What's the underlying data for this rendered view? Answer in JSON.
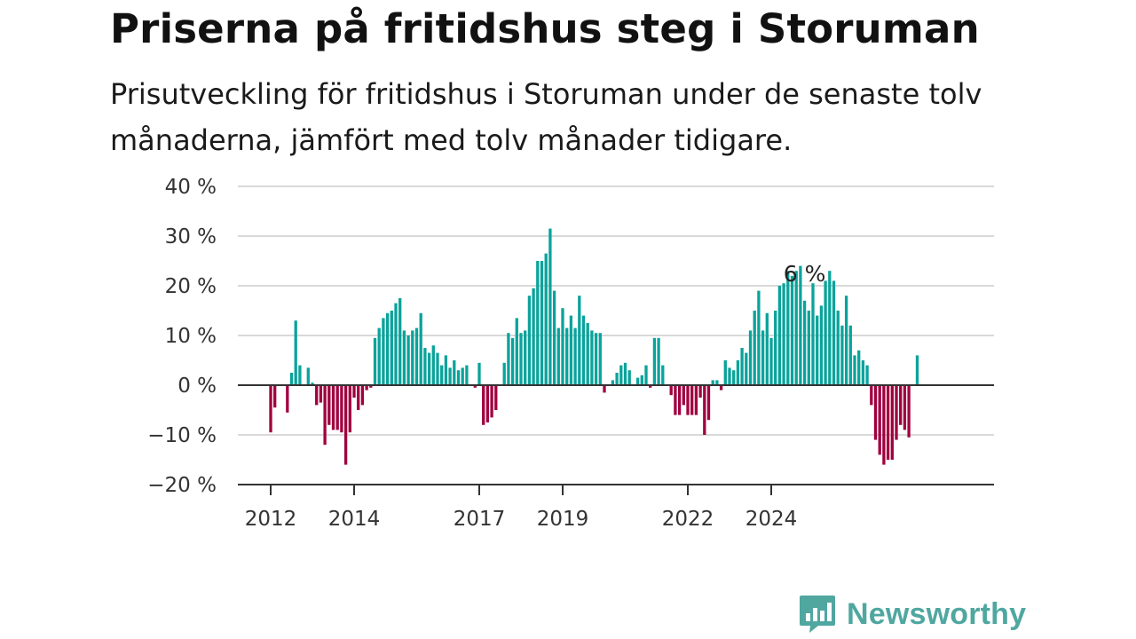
{
  "header": {
    "title": "Priserna på fritidshus steg i Storuman",
    "subtitle": "Prisutveckling för fritidshus i Storuman under de senaste tolv månaderna, jämfört med tolv månader tidigare."
  },
  "brand": {
    "name": "Newsworthy",
    "icon": "newsworthy-logo-icon",
    "color": "#4fa7a0"
  },
  "colors": {
    "positive": "#0aa39b",
    "negative": "#a0003f",
    "zero_line": "#333333",
    "grid": "#d9d9d9"
  },
  "chart_data": {
    "type": "bar",
    "y_unit": "%",
    "ylim": [
      -20,
      40
    ],
    "yticks": [
      40,
      30,
      20,
      10,
      0,
      -10,
      -20
    ],
    "ytick_labels": [
      "40 %",
      "30 %",
      "20 %",
      "10 %",
      "0 %",
      "−10 %",
      "−20 %"
    ],
    "xtick_labels": [
      "2012",
      "2014",
      "2017",
      "2019",
      "2022",
      "2024"
    ],
    "xtick_index": [
      0,
      20,
      50,
      70,
      100,
      120
    ],
    "grid": true,
    "annotation": {
      "text": "6 %",
      "index": 128
    },
    "values": [
      -9.5,
      -4.5,
      0,
      0,
      -5.5,
      2.5,
      13,
      4,
      0,
      3.5,
      0.5,
      -4,
      -3.5,
      -12,
      -8,
      -9,
      -9,
      -9.5,
      -16,
      -9.5,
      -2.5,
      -5,
      -4,
      -1,
      -0.5,
      9.5,
      11.5,
      13.5,
      14.5,
      15,
      16.5,
      17.5,
      11,
      10,
      11,
      11.5,
      14.5,
      7.5,
      6.5,
      8,
      6.5,
      4,
      6,
      3.5,
      5,
      3,
      3.5,
      4,
      0,
      -0.5,
      4.5,
      -8,
      -7.5,
      -6.5,
      -5,
      0,
      4.5,
      10.5,
      9.5,
      13.5,
      10.5,
      11,
      18,
      19.5,
      25,
      25,
      26.5,
      31.5,
      19,
      11.5,
      15.5,
      11.5,
      14,
      11.5,
      18,
      14,
      12.5,
      11,
      10.5,
      10.5,
      -1.5,
      0,
      1,
      2.5,
      4,
      4.5,
      3,
      0,
      1.5,
      2,
      4,
      -0.5,
      9.5,
      9.5,
      4,
      0,
      -2,
      -6,
      -6,
      -4,
      -6,
      -6,
      -6,
      -2.5,
      -10,
      -7,
      1,
      1,
      -1,
      5,
      3.5,
      3,
      5,
      7.5,
      6.5,
      11,
      15,
      19,
      11,
      14.5,
      9.5,
      15,
      20,
      20.5,
      23,
      22,
      23,
      24,
      17,
      15,
      20.5,
      14,
      16,
      21,
      23,
      21,
      15,
      12,
      18,
      12,
      6,
      7,
      5,
      4,
      -4,
      -11,
      -14,
      -16,
      -15,
      -15,
      -11,
      -8,
      -9,
      -10.5,
      0,
      6
    ]
  }
}
